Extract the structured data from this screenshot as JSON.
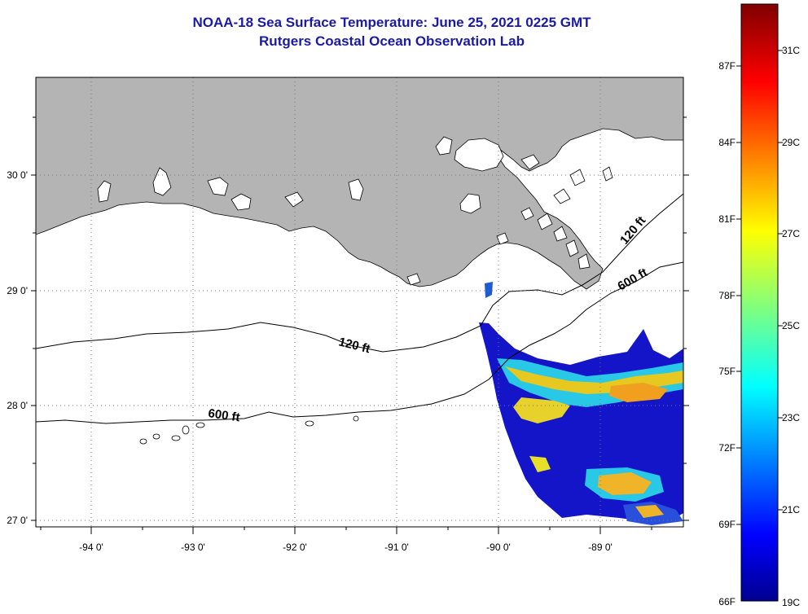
{
  "title": {
    "line1": "NOAA-18 Sea Surface Temperature:  June 25, 2021 0225 GMT",
    "line2": "Rutgers Coastal Ocean Observation Lab"
  },
  "axes": {
    "lon_labels": [
      "-94 0'",
      "-93 0'",
      "-92 0'",
      "-91 0'",
      "-90 0'",
      "-89 0'"
    ],
    "lat_labels": [
      "30 0'",
      "29 0'",
      "28 0'",
      "27 0'"
    ]
  },
  "isobaths": [
    "120 ft",
    "600 ft",
    "120 ft",
    "600 ft"
  ],
  "colorbar": {
    "fahrenheit": [
      "87F",
      "84F",
      "81F",
      "78F",
      "75F",
      "72F",
      "69F",
      "66F"
    ],
    "celsius": [
      "31C",
      "29C",
      "27C",
      "25C",
      "23C",
      "21C",
      "19C"
    ]
  },
  "colors": {
    "land": "#b4b4b4",
    "title": "#1a1aa6"
  }
}
